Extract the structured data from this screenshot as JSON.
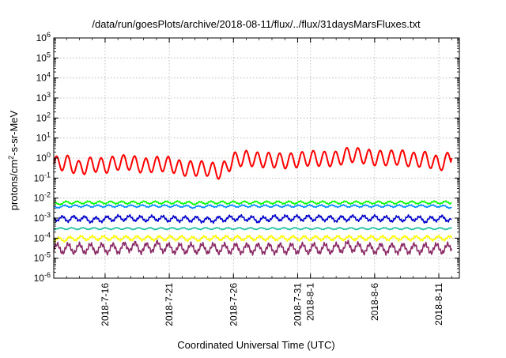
{
  "chart_data": {
    "type": "line",
    "title": "/data/run/goesPlots/archive/2018-08-11/flux/../flux/31daysMarsFluxes.txt",
    "xlabel": "Coordinated Universal Time (UTC)",
    "ylabel": "protons/cm2-s-sr-MeV",
    "y_scale": "log",
    "ylim_exp": [
      -6,
      6
    ],
    "xlim": [
      "2018-07-12",
      "2018-08-12.6"
    ],
    "x_ticks": [
      {
        "date": "2018-07-16",
        "label": "2018-7-16"
      },
      {
        "date": "2018-07-21",
        "label": "2018-7-21"
      },
      {
        "date": "2018-07-26",
        "label": "2018-7-26"
      },
      {
        "date": "2018-07-31",
        "label": "2018-7-31"
      },
      {
        "date": "2018-08-01",
        "label": "2018-8-1"
      },
      {
        "date": "2018-08-06",
        "label": "2018-8-6"
      },
      {
        "date": "2018-08-11",
        "label": "2018-8-11"
      }
    ],
    "y_ticks": [
      {
        "exp": -6,
        "label": "10-6"
      },
      {
        "exp": -5,
        "label": "10-5"
      },
      {
        "exp": -4,
        "label": "10-4"
      },
      {
        "exp": -3,
        "label": "10-3"
      },
      {
        "exp": -2,
        "label": "10-2"
      },
      {
        "exp": -1,
        "label": "10-1"
      },
      {
        "exp": 0,
        "label": "100"
      },
      {
        "exp": 1,
        "label": "101"
      },
      {
        "exp": 2,
        "label": "102"
      },
      {
        "exp": 3,
        "label": "103"
      },
      {
        "exp": 4,
        "label": "104"
      },
      {
        "exp": 5,
        "label": "105"
      },
      {
        "exp": 6,
        "label": "106"
      }
    ],
    "grid": true,
    "x": [
      "2018-07-12",
      "2018-07-13",
      "2018-07-14",
      "2018-07-15",
      "2018-07-16",
      "2018-07-17",
      "2018-07-18",
      "2018-07-19",
      "2018-07-20",
      "2018-07-21",
      "2018-07-22",
      "2018-07-23",
      "2018-07-24",
      "2018-07-25",
      "2018-07-26",
      "2018-07-27",
      "2018-07-28",
      "2018-07-29",
      "2018-07-30",
      "2018-07-31",
      "2018-08-01",
      "2018-08-02",
      "2018-08-03",
      "2018-08-04",
      "2018-08-05",
      "2018-08-06",
      "2018-08-07",
      "2018-08-08",
      "2018-08-09",
      "2018-08-10",
      "2018-08-11",
      "2018-08-12"
    ],
    "series": [
      {
        "color": "#ff0000",
        "values": [
          0.5,
          0.6,
          0.3,
          0.5,
          0.4,
          0.6,
          0.6,
          0.4,
          0.5,
          0.5,
          0.3,
          0.3,
          0.3,
          0.2,
          0.8,
          1.0,
          0.8,
          0.8,
          0.7,
          0.8,
          1.0,
          0.9,
          0.9,
          1.5,
          1.3,
          1.0,
          1.0,
          1.1,
          0.8,
          0.9,
          0.5,
          1.0
        ]
      },
      {
        "color": "#00ff00",
        "values": [
          0.005,
          0.006,
          0.006,
          0.006,
          0.006,
          0.006,
          0.006,
          0.006,
          0.006,
          0.006,
          0.006,
          0.0055,
          0.006,
          0.006,
          0.006,
          0.006,
          0.006,
          0.006,
          0.006,
          0.006,
          0.006,
          0.006,
          0.006,
          0.006,
          0.006,
          0.006,
          0.006,
          0.006,
          0.006,
          0.006,
          0.006,
          0.006
        ]
      },
      {
        "color": "#0088ff",
        "values": [
          0.0035,
          0.004,
          0.004,
          0.004,
          0.004,
          0.004,
          0.004,
          0.004,
          0.004,
          0.004,
          0.004,
          0.0035,
          0.004,
          0.004,
          0.004,
          0.004,
          0.004,
          0.004,
          0.004,
          0.004,
          0.004,
          0.004,
          0.004,
          0.004,
          0.004,
          0.004,
          0.004,
          0.004,
          0.004,
          0.004,
          0.004,
          0.0035
        ]
      },
      {
        "color": "#0000cc",
        "values": [
          0.001,
          0.0009,
          0.001,
          0.0008,
          0.0009,
          0.001,
          0.001,
          0.0009,
          0.001,
          0.0009,
          0.0009,
          0.0009,
          0.0008,
          0.0009,
          0.001,
          0.001,
          0.0008,
          0.001,
          0.001,
          0.001,
          0.001,
          0.001,
          0.0009,
          0.001,
          0.001,
          0.001,
          0.0009,
          0.0009,
          0.001,
          0.0008,
          0.001,
          0.0009
        ]
      },
      {
        "color": "#20c0a0",
        "values": [
          0.0003,
          0.0003,
          0.0003,
          0.0003,
          0.0003,
          0.0003,
          0.0003,
          0.0003,
          0.0003,
          0.0003,
          0.0003,
          0.0003,
          0.0003,
          0.0003,
          0.0003,
          0.0003,
          0.0003,
          0.0003,
          0.0003,
          0.0003,
          0.0003,
          0.0003,
          0.0003,
          0.0003,
          0.0003,
          0.0003,
          0.0003,
          0.0003,
          0.0003,
          0.0003,
          0.0003,
          0.0003
        ]
      },
      {
        "color": "#ffff00",
        "values": [
          8e-05,
          9e-05,
          0.0001,
          0.0001,
          0.0001,
          0.0001,
          0.0001,
          0.0001,
          0.0001,
          0.0001,
          0.0001,
          9e-05,
          0.0001,
          0.0001,
          0.0001,
          0.0001,
          0.0001,
          0.0001,
          0.0001,
          0.0001,
          0.0001,
          0.0001,
          0.0001,
          0.0001,
          0.0001,
          0.0001,
          0.0001,
          0.0001,
          0.0001,
          0.0001,
          0.0001,
          0.0001
        ]
      },
      {
        "color": "#8b2c66",
        "values": [
          3e-05,
          3e-05,
          3e-05,
          3e-05,
          3e-05,
          3e-05,
          4e-05,
          3e-05,
          4e-05,
          3e-05,
          3e-05,
          3e-05,
          3e-05,
          3e-05,
          3e-05,
          3e-05,
          3e-05,
          3e-05,
          3e-05,
          3e-05,
          3e-05,
          3e-05,
          3e-05,
          4e-05,
          3e-05,
          3e-05,
          3e-05,
          3e-05,
          3e-05,
          3e-05,
          3e-05,
          3e-05
        ]
      }
    ]
  }
}
